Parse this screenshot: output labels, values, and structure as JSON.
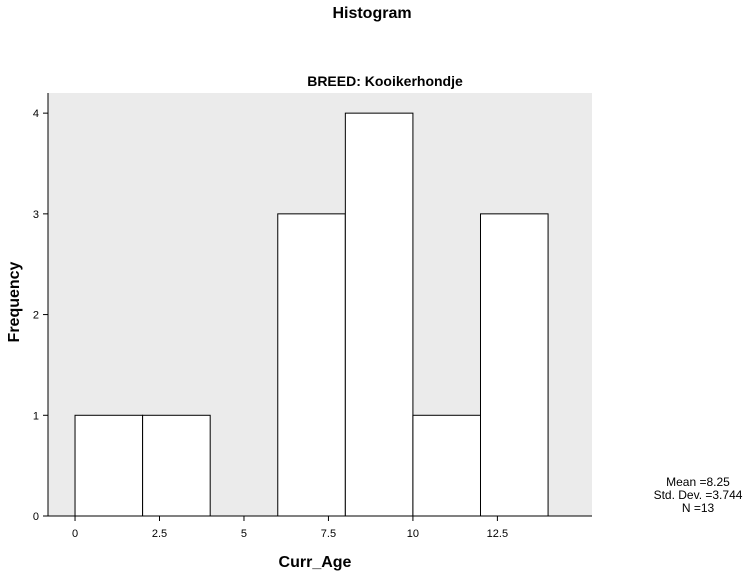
{
  "chart_data": {
    "type": "bar",
    "title": "Histogram",
    "subtitle": "BREED: Kooikerhondje",
    "xlabel": "Curr_Age",
    "ylabel": "Frequency",
    "xlim": [
      -0.8,
      15.3
    ],
    "ylim": [
      0,
      4.2
    ],
    "x_ticks": [
      {
        "value": 0,
        "label": "0"
      },
      {
        "value": 2.5,
        "label": "2.5"
      },
      {
        "value": 5,
        "label": "5"
      },
      {
        "value": 7.5,
        "label": "7.5"
      },
      {
        "value": 10,
        "label": "10"
      },
      {
        "value": 12.5,
        "label": "12.5"
      }
    ],
    "y_ticks": [
      {
        "value": 0,
        "label": "0"
      },
      {
        "value": 1,
        "label": "1"
      },
      {
        "value": 2,
        "label": "2"
      },
      {
        "value": 3,
        "label": "3"
      },
      {
        "value": 4,
        "label": "4"
      }
    ],
    "bins": [
      {
        "start": 0,
        "end": 2,
        "count": 1
      },
      {
        "start": 2,
        "end": 4,
        "count": 1
      },
      {
        "start": 4,
        "end": 6,
        "count": 0
      },
      {
        "start": 6,
        "end": 8,
        "count": 3
      },
      {
        "start": 8,
        "end": 10,
        "count": 4
      },
      {
        "start": 10,
        "end": 12,
        "count": 1
      },
      {
        "start": 12,
        "end": 14,
        "count": 3
      }
    ],
    "stats": {
      "mean": "Mean =8.25",
      "std_dev": "Std. Dev. =3.744",
      "n": "N =13"
    },
    "colors": {
      "plot_background": "#ebebeb",
      "bar_fill": "#ffffff",
      "bar_stroke": "#000000"
    }
  }
}
